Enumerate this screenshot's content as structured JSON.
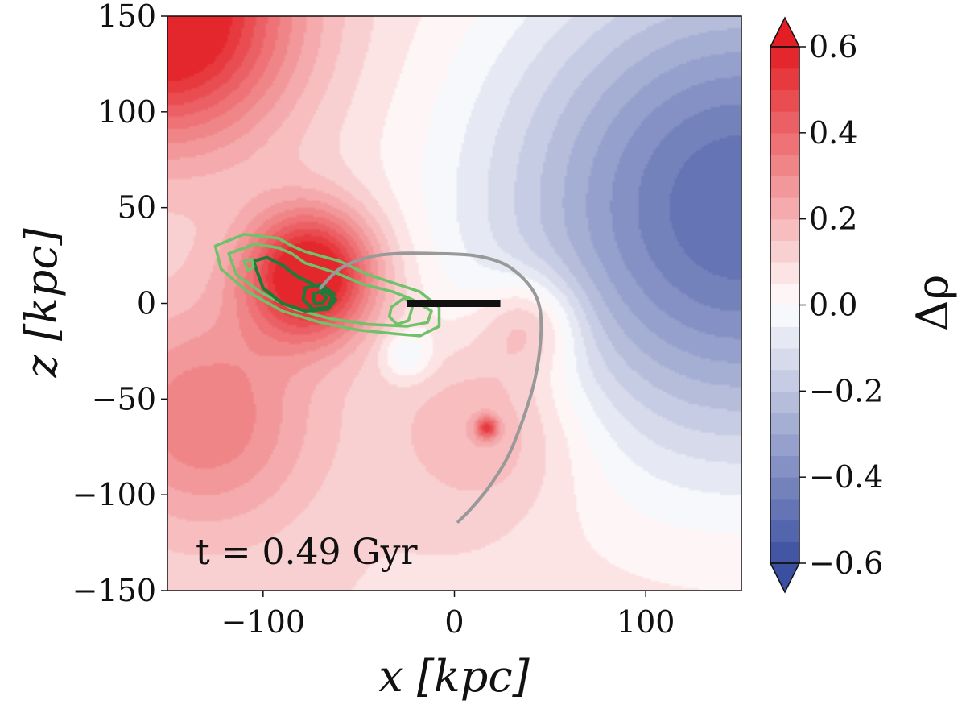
{
  "chart_data": {
    "type": "heatmap",
    "title": "",
    "xlabel": "x [kpc]",
    "ylabel": "z [kpc]",
    "xlim": [
      -150,
      150
    ],
    "ylim": [
      -150,
      150
    ],
    "x_ticks": [
      -100,
      0,
      100
    ],
    "x_tick_labels": [
      "−100",
      "0",
      "100"
    ],
    "y_ticks": [
      -150,
      -100,
      -50,
      0,
      50,
      100,
      150
    ],
    "y_tick_labels": [
      "−150",
      "−100",
      "−50",
      "0",
      "50",
      "100",
      "150"
    ],
    "colorbar": {
      "label": "Δρ",
      "range": [
        -0.6,
        0.6
      ],
      "ticks": [
        -0.6,
        -0.4,
        -0.2,
        0.0,
        0.2,
        0.4,
        0.6
      ],
      "tick_labels": [
        "−0.6",
        "−0.4",
        "−0.2",
        "0.0",
        "0.2",
        "0.4",
        "0.6"
      ],
      "levels": 24,
      "colormap": [
        "#3b4fa0",
        "#ffffff",
        "#e31e24"
      ],
      "extend": "both"
    },
    "density_features": [
      {
        "name": "satellite overdensity",
        "x": -75,
        "z": 15,
        "value": 0.6,
        "sigma": 24
      },
      {
        "name": "upper-left wake",
        "x": -150,
        "z": 150,
        "value": 0.6,
        "sigma": 45
      },
      {
        "name": "lower-left region",
        "x": -130,
        "z": -60,
        "value": 0.25,
        "sigma": 40
      },
      {
        "name": "lower arm",
        "x": 20,
        "z": -60,
        "value": 0.18,
        "sigma": 35
      },
      {
        "name": "arm bump",
        "x": 40,
        "z": -10,
        "value": 0.2,
        "sigma": 18
      },
      {
        "name": "small peak",
        "x": 17,
        "z": -65,
        "value": 0.35,
        "sigma": 4
      },
      {
        "name": "central dip",
        "x": -25,
        "z": -27,
        "value": -0.15,
        "sigma": 9
      },
      {
        "name": "right underdensity",
        "x": 150,
        "z": 50,
        "value": -0.6,
        "sigma": 90
      }
    ],
    "orbit": {
      "color": "#999999",
      "points": [
        [
          -70,
          8
        ],
        [
          -60,
          18
        ],
        [
          -45,
          24
        ],
        [
          -30,
          26
        ],
        [
          -10,
          26
        ],
        [
          10,
          25
        ],
        [
          25,
          21
        ],
        [
          35,
          14
        ],
        [
          42,
          5
        ],
        [
          45,
          -5
        ],
        [
          45,
          -20
        ],
        [
          42,
          -40
        ],
        [
          36,
          -60
        ],
        [
          28,
          -80
        ],
        [
          18,
          -96
        ],
        [
          8,
          -108
        ],
        [
          2,
          -114
        ]
      ]
    },
    "disk_segment": {
      "color": "#111111",
      "x": [
        -25,
        24
      ],
      "z": [
        0,
        0
      ]
    },
    "satellite_contours": {
      "color_outer": "#6fc16a",
      "color_inner": "#1f7a3a",
      "levels": [
        [
          [
            -125,
            30
          ],
          [
            -110,
            36
          ],
          [
            -92,
            34
          ],
          [
            -85,
            30
          ],
          [
            -78,
            27
          ],
          [
            -60,
            22
          ],
          [
            -45,
            15
          ],
          [
            -30,
            10
          ],
          [
            -18,
            6
          ],
          [
            -8,
            -2
          ],
          [
            -8,
            -12
          ],
          [
            -18,
            -17
          ],
          [
            -30,
            -16
          ],
          [
            -50,
            -14
          ],
          [
            -70,
            -10
          ],
          [
            -90,
            -4
          ],
          [
            -108,
            6
          ],
          [
            -122,
            18
          ],
          [
            -125,
            30
          ]
        ],
        [
          [
            -118,
            26
          ],
          [
            -104,
            31
          ],
          [
            -92,
            29
          ],
          [
            -85,
            26
          ],
          [
            -78,
            21
          ],
          [
            -62,
            16
          ],
          [
            -48,
            10
          ],
          [
            -32,
            6
          ],
          [
            -22,
            2
          ],
          [
            -12,
            -4
          ],
          [
            -14,
            -10
          ],
          [
            -25,
            -12
          ],
          [
            -45,
            -11
          ],
          [
            -65,
            -8
          ],
          [
            -84,
            -3
          ],
          [
            -100,
            5
          ],
          [
            -114,
            15
          ],
          [
            -118,
            26
          ]
        ],
        [
          [
            -105,
            22
          ],
          [
            -98,
            24
          ],
          [
            -90,
            20
          ],
          [
            -82,
            14
          ],
          [
            -70,
            8
          ],
          [
            -62,
            2
          ],
          [
            -66,
            -3
          ],
          [
            -78,
            -4
          ],
          [
            -90,
            0
          ],
          [
            -100,
            8
          ],
          [
            -105,
            22
          ]
        ],
        [
          [
            -78,
            8
          ],
          [
            -70,
            10
          ],
          [
            -63,
            5
          ],
          [
            -66,
            -2
          ],
          [
            -74,
            -3
          ],
          [
            -79,
            2
          ],
          [
            -78,
            8
          ]
        ],
        [
          [
            -74,
            5
          ],
          [
            -70,
            6
          ],
          [
            -67,
            3
          ],
          [
            -69,
            0
          ],
          [
            -73,
            0
          ],
          [
            -74,
            5
          ]
        ],
        [
          [
            -33,
            -2
          ],
          [
            -26,
            3
          ],
          [
            -22,
            -2
          ],
          [
            -24,
            -9
          ],
          [
            -30,
            -11
          ],
          [
            -34,
            -7
          ],
          [
            -33,
            -2
          ]
        ],
        [
          [
            -110,
            22
          ],
          [
            -106,
            23
          ],
          [
            -105,
            19
          ],
          [
            -108,
            17
          ],
          [
            -110,
            22
          ]
        ]
      ]
    },
    "annotation": "t = 0.49 Gyr"
  }
}
